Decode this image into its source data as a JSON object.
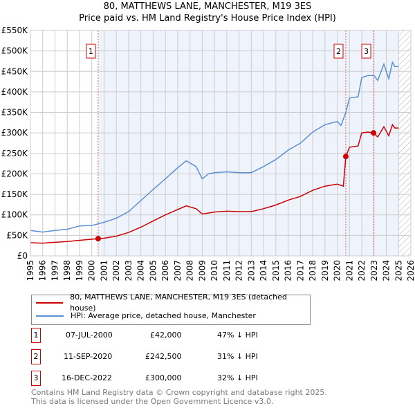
{
  "header": {
    "title": "80, MATTHEWS LANE, MANCHESTER, M19 3ES",
    "subtitle": "Price paid vs. HM Land Registry's House Price Index (HPI)"
  },
  "chart_data": {
    "type": "line",
    "title": "80, MATTHEWS LANE, MANCHESTER, M19 3ES",
    "subtitle": "Price paid vs. HM Land Registry's House Price Index (HPI)",
    "xlim": [
      1995,
      2026
    ],
    "ylim": [
      0,
      550000
    ],
    "x_ticks": [
      "1995",
      "1996",
      "1997",
      "1998",
      "1999",
      "2000",
      "2001",
      "2002",
      "2003",
      "2004",
      "2005",
      "2006",
      "2007",
      "2008",
      "2009",
      "2010",
      "2011",
      "2012",
      "2013",
      "2014",
      "2015",
      "2016",
      "2017",
      "2018",
      "2019",
      "2020",
      "2021",
      "2022",
      "2023",
      "2024",
      "2025",
      "2026"
    ],
    "y_ticks": [
      {
        "v": 0,
        "label": "£0"
      },
      {
        "v": 50000,
        "label": "£50K"
      },
      {
        "v": 100000,
        "label": "£100K"
      },
      {
        "v": 150000,
        "label": "£150K"
      },
      {
        "v": 200000,
        "label": "£200K"
      },
      {
        "v": 250000,
        "label": "£250K"
      },
      {
        "v": 300000,
        "label": "£300K"
      },
      {
        "v": 350000,
        "label": "£350K"
      },
      {
        "v": 400000,
        "label": "£400K"
      },
      {
        "v": 450000,
        "label": "£450K"
      },
      {
        "v": 500000,
        "label": "£500K"
      },
      {
        "v": 550000,
        "label": "£550K"
      }
    ],
    "grid": true,
    "shaded_range": [
      2000.53,
      2025.0
    ],
    "hatched_range": [
      2025.0,
      2026
    ],
    "series": [
      {
        "name": "80, MATTHEWS LANE, MANCHESTER, M19 3ES (detached house)",
        "color": "#cc0000",
        "x": [
          1995,
          1996,
          1997,
          1998,
          1999,
          2000.53,
          2001,
          2002,
          2003,
          2004,
          2005,
          2006,
          2007,
          2007.7,
          2008.5,
          2009,
          2010,
          2011,
          2012,
          2013,
          2014,
          2015,
          2016,
          2017,
          2018,
          2019,
          2020,
          2020.5,
          2020.7,
          2021,
          2021.7,
          2022,
          2022.5,
          2022.96,
          2023.3,
          2023.8,
          2024.2,
          2024.5,
          2024.7,
          2025
        ],
        "y": [
          32000,
          31000,
          33000,
          35000,
          38000,
          42000,
          43000,
          48000,
          57000,
          70000,
          85000,
          100000,
          113000,
          122000,
          115000,
          102000,
          107000,
          109000,
          108000,
          108000,
          115000,
          124000,
          136000,
          145000,
          160000,
          170000,
          175000,
          170000,
          242500,
          265000,
          268000,
          300000,
          302000,
          300000,
          290000,
          315000,
          293000,
          320000,
          312000,
          312000
        ]
      },
      {
        "name": "HPI: Average price, detached house, Manchester",
        "color": "#5b8fd4",
        "x": [
          1995,
          1996,
          1997,
          1998,
          1999,
          2000,
          2001,
          2002,
          2003,
          2004,
          2005,
          2006,
          2007,
          2007.7,
          2008.5,
          2009,
          2009.5,
          2010,
          2011,
          2012,
          2013,
          2014,
          2015,
          2016,
          2017,
          2018,
          2019,
          2020,
          2020.3,
          2020.7,
          2021,
          2021.7,
          2022,
          2022.5,
          2023,
          2023.3,
          2023.8,
          2024.2,
          2024.5,
          2024.7,
          2025
        ],
        "y": [
          62000,
          58000,
          62000,
          65000,
          73000,
          74000,
          82000,
          92000,
          108000,
          135000,
          162000,
          188000,
          215000,
          232000,
          218000,
          188000,
          200000,
          203000,
          205000,
          203000,
          203000,
          218000,
          235000,
          258000,
          275000,
          302000,
          320000,
          328000,
          318000,
          350000,
          385000,
          388000,
          435000,
          440000,
          440000,
          428000,
          468000,
          432000,
          472000,
          462000,
          462000
        ]
      }
    ],
    "sales": [
      {
        "label": "1",
        "x": 2000.52,
        "y": 42000,
        "date": "07-JUL-2000",
        "price": "£42,000",
        "hpi": "47% ↓ HPI"
      },
      {
        "label": "2",
        "x": 2020.7,
        "y": 242500,
        "date": "11-SEP-2020",
        "price": "£242,500",
        "hpi": "31% ↓ HPI"
      },
      {
        "label": "3",
        "x": 2022.96,
        "y": 300000,
        "date": "16-DEC-2022",
        "price": "£300,000",
        "hpi": "32% ↓ HPI"
      }
    ],
    "legend_position": "below"
  },
  "footer": {
    "line1": "Contains HM Land Registry data © Crown copyright and database right 2025.",
    "line2": "This data is licensed under the Open Government Licence v3.0."
  }
}
